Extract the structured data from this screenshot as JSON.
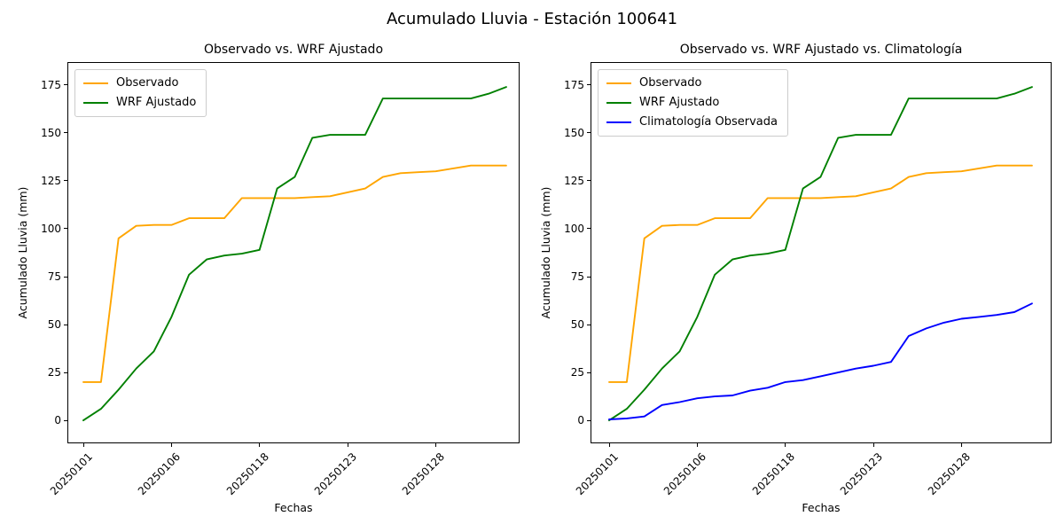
{
  "suptitle": "Acumulado Lluvia - Estación 100641",
  "chart_data": [
    {
      "type": "line",
      "title": "Observado vs. WRF Ajustado",
      "xlabel": "Fechas",
      "ylabel": "Acumulado Lluvia (mm)",
      "grid": false,
      "legend_position": "upper-left",
      "n_points": 25,
      "x_tick_positions": [
        0,
        5,
        10,
        15,
        20
      ],
      "x_tick_labels": [
        "20250101",
        "20250106",
        "20250118",
        "20250123",
        "20250128"
      ],
      "y_ticks": [
        0,
        25,
        50,
        75,
        100,
        125,
        150,
        175
      ],
      "ylim": [
        -12,
        187
      ],
      "series": [
        {
          "name": "Observado",
          "color": "#FFA500",
          "values": [
            20,
            20,
            95,
            101.5,
            102,
            102,
            105.5,
            105.5,
            105.5,
            116,
            116,
            116,
            116,
            116.5,
            117,
            119,
            121,
            127,
            129,
            129.5,
            130,
            131.5,
            133,
            133,
            133
          ]
        },
        {
          "name": "WRF Ajustado",
          "color": "#008000",
          "values": [
            0,
            6,
            16,
            27,
            36,
            54,
            76,
            84,
            86,
            87,
            89,
            121,
            127,
            147.5,
            149,
            149,
            149,
            168,
            168,
            168,
            168,
            168,
            168,
            170.5,
            174
          ]
        }
      ]
    },
    {
      "type": "line",
      "title": "Observado vs. WRF Ajustado vs. Climatología",
      "xlabel": "Fechas",
      "ylabel": "Acumulado Lluvia (mm)",
      "grid": false,
      "legend_position": "upper-left",
      "n_points": 25,
      "x_tick_positions": [
        0,
        5,
        10,
        15,
        20
      ],
      "x_tick_labels": [
        "20250101",
        "20250106",
        "20250118",
        "20250123",
        "20250128"
      ],
      "y_ticks": [
        0,
        25,
        50,
        75,
        100,
        125,
        150,
        175
      ],
      "ylim": [
        -12,
        187
      ],
      "series": [
        {
          "name": "Observado",
          "color": "#FFA500",
          "values": [
            20,
            20,
            95,
            101.5,
            102,
            102,
            105.5,
            105.5,
            105.5,
            116,
            116,
            116,
            116,
            116.5,
            117,
            119,
            121,
            127,
            129,
            129.5,
            130,
            131.5,
            133,
            133,
            133
          ]
        },
        {
          "name": "WRF Ajustado",
          "color": "#008000",
          "values": [
            0,
            6,
            16,
            27,
            36,
            54,
            76,
            84,
            86,
            87,
            89,
            121,
            127,
            147.5,
            149,
            149,
            149,
            168,
            168,
            168,
            168,
            168,
            168,
            170.5,
            174
          ]
        },
        {
          "name": "Climatología Observada",
          "color": "#0000FF",
          "values": [
            0.5,
            1,
            2,
            8,
            9.5,
            11.5,
            12.5,
            13,
            15.5,
            17,
            20,
            21,
            23,
            25,
            27,
            28.5,
            30.5,
            44,
            48,
            51,
            53,
            54,
            55,
            56.5,
            61
          ]
        }
      ]
    }
  ]
}
